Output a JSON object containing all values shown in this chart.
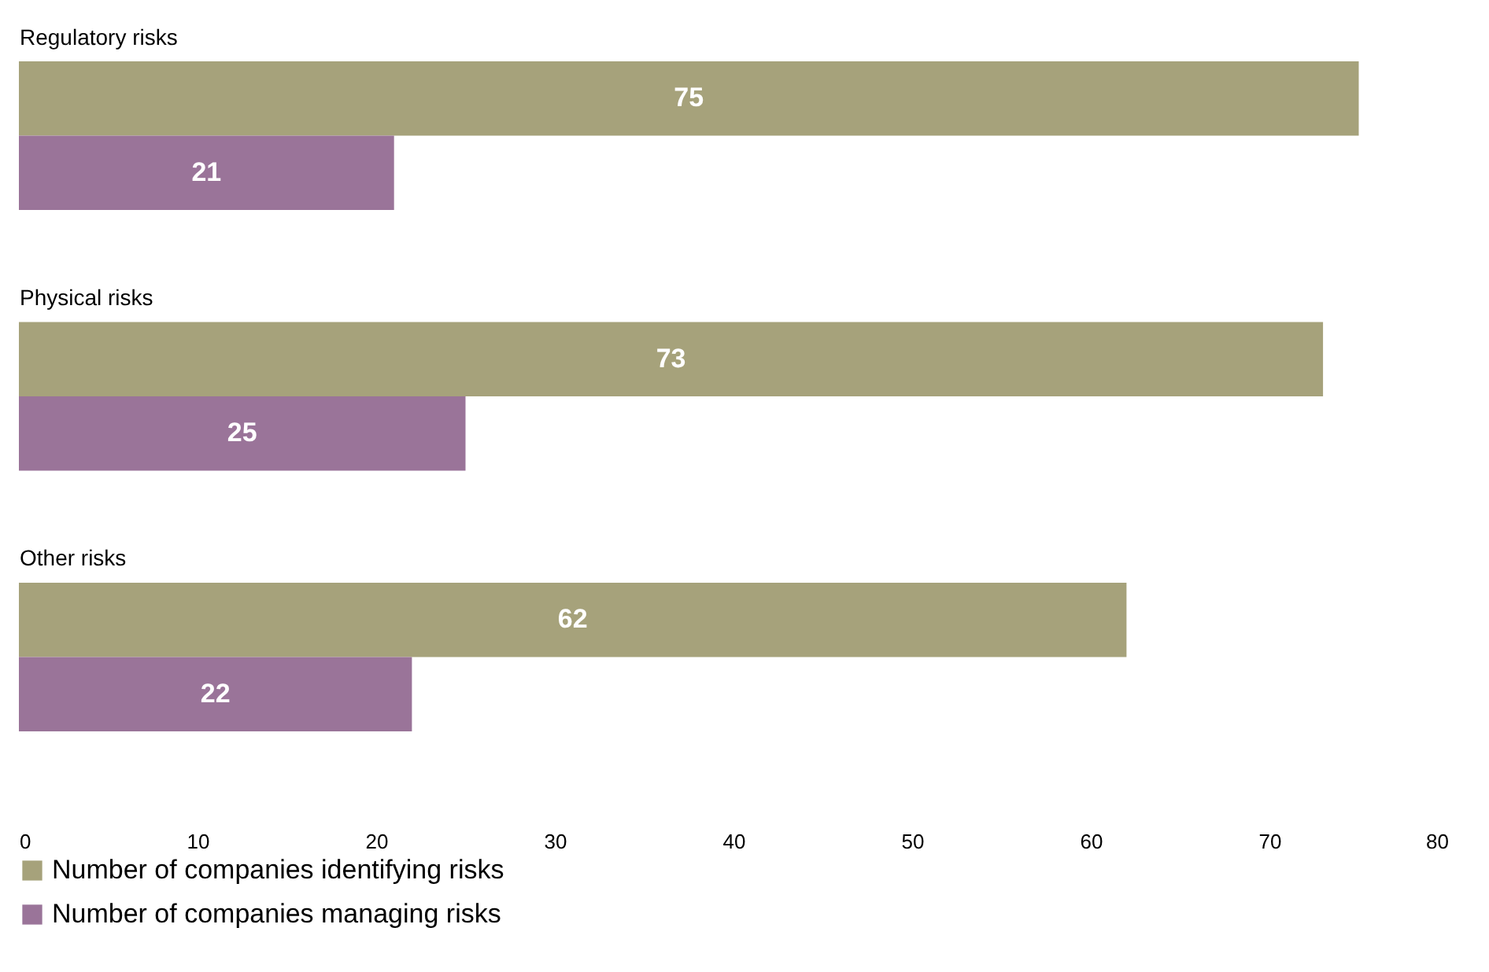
{
  "chart_data": {
    "type": "bar",
    "orientation": "horizontal",
    "categories": [
      "Regulatory risks",
      "Physical risks",
      "Other risks"
    ],
    "series": [
      {
        "name": "Number of companies identifying risks",
        "color": "#a6a27b",
        "values": [
          75,
          73,
          62
        ]
      },
      {
        "name": "Number of companies managing risks",
        "color": "#9a7499",
        "values": [
          21,
          25,
          22
        ]
      }
    ],
    "xlim": [
      0,
      80
    ],
    "xticks": [
      0,
      10,
      20,
      30,
      40,
      50,
      60,
      70,
      80
    ],
    "data_labels": true,
    "legend": "bottom left"
  }
}
